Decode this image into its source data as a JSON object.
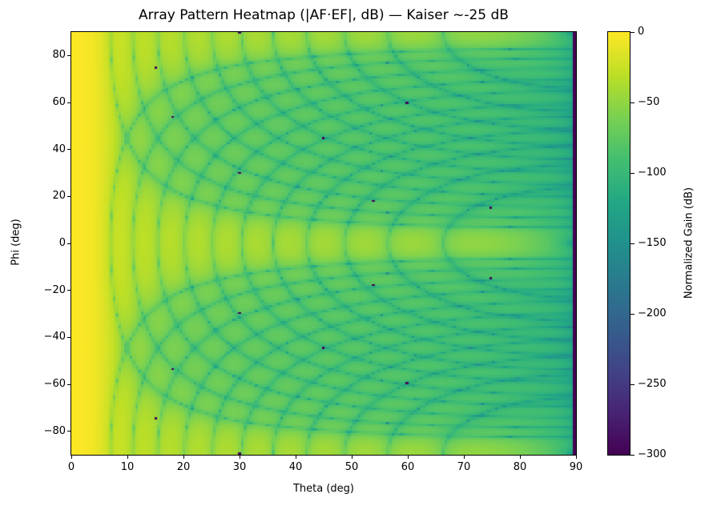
{
  "chart_data": {
    "type": "heatmap",
    "title": "Array Pattern Heatmap (|AF·EF|, dB) — Kaiser ~-25 dB",
    "xlabel": "Theta (deg)",
    "ylabel": "Phi (deg)",
    "xlim": [
      0,
      90
    ],
    "ylim": [
      -90,
      90
    ],
    "theta_step": 0.5,
    "phi_step": 1,
    "xticks": [
      0,
      10,
      20,
      30,
      40,
      50,
      60,
      70,
      80,
      90
    ],
    "yticks": [
      80,
      60,
      40,
      20,
      0,
      -20,
      -40,
      -60,
      -80
    ],
    "ytick_labels": [
      "80",
      "60",
      "40",
      "20",
      "0",
      "−20",
      "−40",
      "−60",
      "−80"
    ],
    "colormap": "viridis",
    "clim": [
      -300,
      0
    ],
    "colorbar": {
      "label": "Normalized Gain (dB)",
      "ticks": [
        0,
        -50,
        -100,
        -150,
        -200,
        -250,
        -300
      ],
      "tick_labels": [
        "0",
        "−50",
        "−100",
        "−150",
        "−200",
        "−250",
        "−300"
      ]
    },
    "grid": false,
    "floor_points_db": -300,
    "floor_points": [
      [
        15,
        75
      ],
      [
        18,
        54
      ],
      [
        30,
        30
      ],
      [
        45,
        45
      ],
      [
        54,
        18
      ],
      [
        60,
        60
      ],
      [
        75,
        15
      ],
      [
        30,
        90
      ],
      [
        15,
        -75
      ],
      [
        18,
        -54
      ],
      [
        30,
        -30
      ],
      [
        45,
        -45
      ],
      [
        54,
        -18
      ],
      [
        60,
        -60
      ],
      [
        75,
        -15
      ],
      [
        30,
        -90
      ]
    ],
    "floor_column_theta": 90
  }
}
